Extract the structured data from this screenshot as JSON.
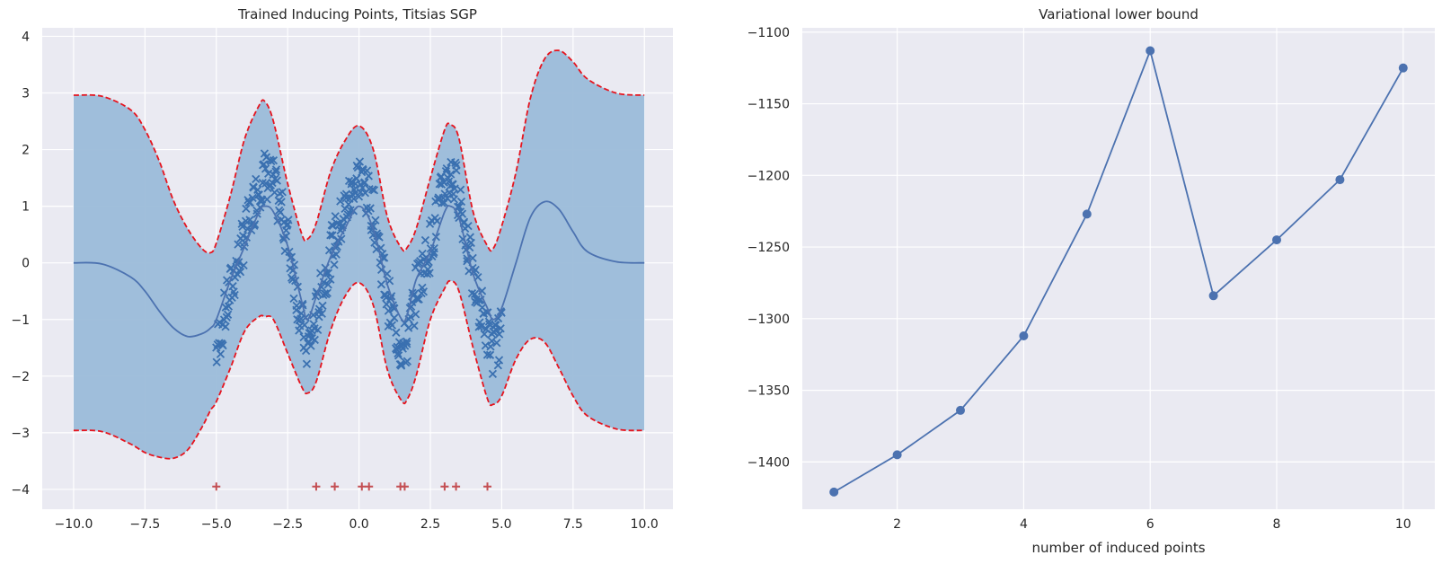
{
  "chart_data": [
    {
      "type": "line",
      "title": "Trained Inducing Points, Titsias SGP",
      "xlabel": "",
      "ylabel": "",
      "xlim": [
        -11.1,
        11.0
      ],
      "ylim": [
        -4.35,
        4.15
      ],
      "xticks": [
        -10.0,
        -7.5,
        -5.0,
        -2.5,
        0.0,
        2.5,
        5.0,
        7.5,
        10.0
      ],
      "xtick_labels": [
        "−10.0",
        "−7.5",
        "−5.0",
        "−2.5",
        "0.0",
        "2.5",
        "5.0",
        "7.5",
        "10.0"
      ],
      "yticks": [
        -4,
        -3,
        -2,
        -1,
        0,
        1,
        2,
        3,
        4
      ],
      "ytick_labels": [
        "−4",
        "−3",
        "−2",
        "−1",
        "0",
        "1",
        "2",
        "3",
        "4"
      ],
      "grid": true,
      "colors": {
        "mean": "#4c72b0",
        "band": "#9bbcd9",
        "bounds": "#e6141e",
        "observations": "#3a70b0",
        "inducing": "#c44e52"
      },
      "observation_x_range": [
        -5.0,
        5.0
      ],
      "inducing_points_y": -3.95,
      "inducing_points_x": [
        -5.0,
        -1.5,
        -0.85,
        0.1,
        0.35,
        1.45,
        1.6,
        3.0,
        3.4,
        4.5
      ],
      "posterior": {
        "x": [
          -10.0,
          -9.0,
          -8.0,
          -7.5,
          -7.0,
          -6.5,
          -6.0,
          -5.5,
          -5.2,
          -5.0,
          -4.5,
          -4.0,
          -3.5,
          -3.3,
          -3.0,
          -2.5,
          -2.0,
          -1.8,
          -1.5,
          -1.0,
          -0.5,
          0.0,
          0.5,
          1.0,
          1.5,
          1.7,
          2.0,
          2.5,
          3.0,
          3.2,
          3.5,
          4.0,
          4.5,
          4.7,
          5.0,
          5.5,
          6.0,
          6.5,
          7.0,
          7.5,
          8.0,
          9.0,
          10.0
        ],
        "mean": [
          0.0,
          -0.02,
          -0.25,
          -0.5,
          -0.85,
          -1.15,
          -1.3,
          -1.25,
          -1.15,
          -1.0,
          -0.3,
          0.3,
          0.9,
          1.0,
          0.9,
          0.3,
          -0.7,
          -1.0,
          -0.6,
          0.1,
          0.6,
          1.0,
          0.6,
          -0.4,
          -1.0,
          -0.9,
          -0.3,
          0.2,
          0.9,
          1.0,
          0.8,
          -0.2,
          -0.8,
          -1.0,
          -0.8,
          0.0,
          0.8,
          1.08,
          0.95,
          0.55,
          0.2,
          0.02,
          0.0
        ],
        "upper": [
          2.96,
          2.94,
          2.7,
          2.35,
          1.8,
          1.1,
          0.6,
          0.25,
          0.18,
          0.35,
          1.2,
          2.2,
          2.78,
          2.85,
          2.5,
          1.4,
          0.5,
          0.42,
          0.7,
          1.6,
          2.15,
          2.42,
          2.0,
          0.8,
          0.25,
          0.28,
          0.6,
          1.5,
          2.35,
          2.44,
          2.2,
          0.9,
          0.3,
          0.25,
          0.65,
          1.6,
          2.9,
          3.6,
          3.75,
          3.55,
          3.25,
          3.0,
          2.96
        ],
        "lower": [
          -2.96,
          -2.98,
          -3.2,
          -3.35,
          -3.43,
          -3.45,
          -3.3,
          -2.9,
          -2.6,
          -2.45,
          -1.85,
          -1.2,
          -0.95,
          -0.95,
          -1.0,
          -1.6,
          -2.2,
          -2.3,
          -2.1,
          -1.2,
          -0.6,
          -0.35,
          -0.75,
          -1.9,
          -2.44,
          -2.4,
          -2.0,
          -1.0,
          -0.45,
          -0.32,
          -0.5,
          -1.5,
          -2.4,
          -2.5,
          -2.35,
          -1.7,
          -1.35,
          -1.4,
          -1.85,
          -2.35,
          -2.7,
          -2.93,
          -2.96
        ]
      }
    },
    {
      "type": "line",
      "title": "Variational lower bound",
      "xlabel": "number of induced points",
      "ylabel": "",
      "xlim": [
        0.5,
        10.5
      ],
      "ylim": [
        -1433,
        -1097
      ],
      "xticks": [
        2,
        4,
        6,
        8,
        10
      ],
      "xtick_labels": [
        "2",
        "4",
        "6",
        "8",
        "10"
      ],
      "yticks": [
        -1100,
        -1150,
        -1200,
        -1250,
        -1300,
        -1350,
        -1400
      ],
      "ytick_labels": [
        "−1100",
        "−1150",
        "−1200",
        "−1250",
        "−1300",
        "−1350",
        "−1400"
      ],
      "grid": true,
      "colors": {
        "line": "#4c72b0"
      },
      "series": [
        {
          "x": [
            1,
            2,
            3,
            4,
            5,
            6,
            7,
            8,
            9,
            10
          ],
          "values": [
            -1421,
            -1395,
            -1364,
            -1312,
            -1227,
            -1113,
            -1284,
            -1245,
            -1203,
            -1125
          ]
        }
      ]
    }
  ]
}
